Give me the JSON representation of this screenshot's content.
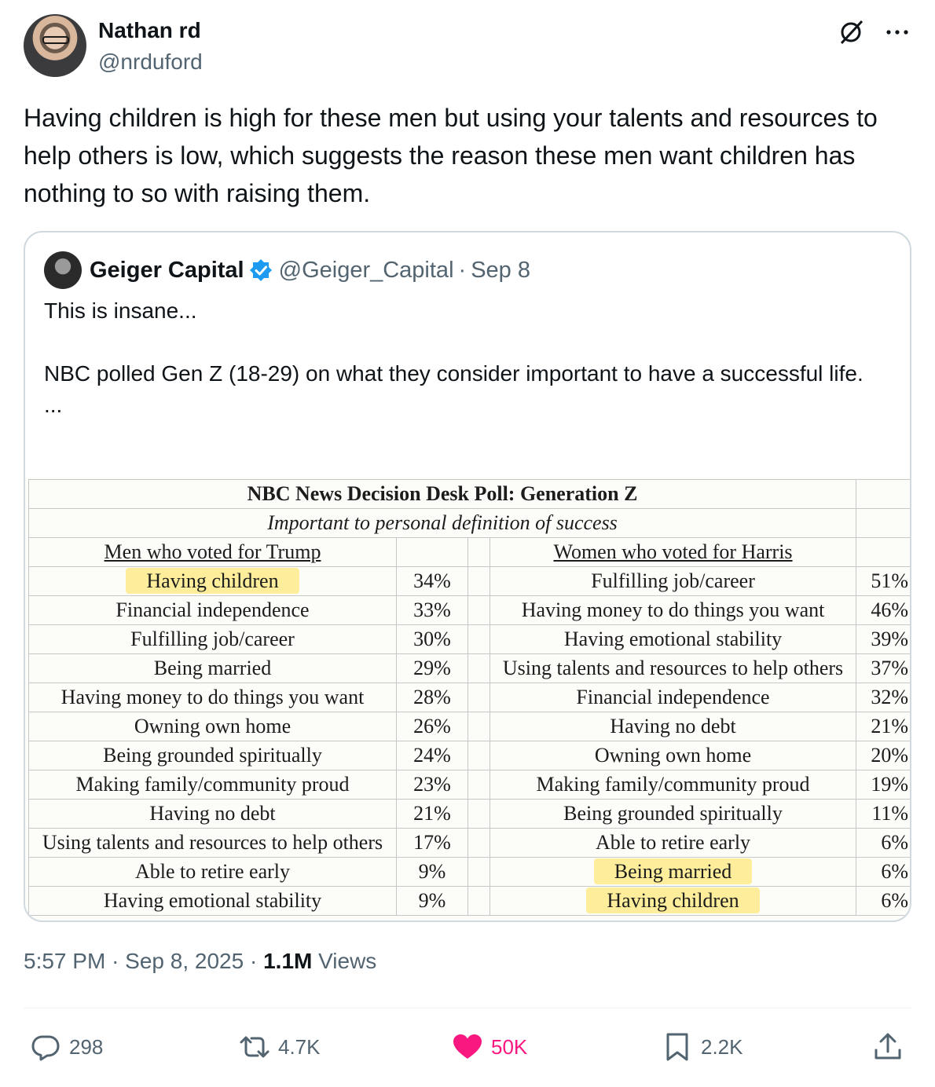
{
  "author": {
    "display_name": "Nathan rd",
    "handle": "@nrduford"
  },
  "tweet_text": "Having children is high for these men but using your talents and resources to help others is low, which suggests the reason these men want children has nothing to so with raising them.",
  "quote": {
    "display_name": "Geiger Capital",
    "handle": "@Geiger_Capital",
    "separator": "·",
    "date": "Sep 8",
    "text": "This is insane...\n\nNBC polled Gen Z (18-29) on what they consider important to have a successful life.\n..."
  },
  "poll": {
    "title": "NBC News Decision Desk Poll: Generation Z",
    "subtitle": "Important to personal definition of success",
    "left_header": "Men who voted for Trump",
    "right_header": "Women who voted for Harris",
    "rows": [
      {
        "left": "Having children",
        "left_pct": "34%",
        "right": "Fulfilling job/career",
        "right_pct": "51%"
      },
      {
        "left": "Financial independence",
        "left_pct": "33%",
        "right": "Having money to do things you want",
        "right_pct": "46%"
      },
      {
        "left": "Fulfilling job/career",
        "left_pct": "30%",
        "right": "Having emotional stability",
        "right_pct": "39%"
      },
      {
        "left": "Being married",
        "left_pct": "29%",
        "right": "Using talents and resources to help others",
        "right_pct": "37%"
      },
      {
        "left": "Having money to do things you want",
        "left_pct": "28%",
        "right": "Financial independence",
        "right_pct": "32%"
      },
      {
        "left": "Owning own home",
        "left_pct": "26%",
        "right": "Having no debt",
        "right_pct": "21%"
      },
      {
        "left": "Being grounded spiritually",
        "left_pct": "24%",
        "right": "Owning own home",
        "right_pct": "20%"
      },
      {
        "left": "Making family/community proud",
        "left_pct": "23%",
        "right": "Making family/community proud",
        "right_pct": "19%"
      },
      {
        "left": "Having no debt",
        "left_pct": "21%",
        "right": "Being grounded spiritually",
        "right_pct": "11%"
      },
      {
        "left": "Using talents and resources to help others",
        "left_pct": "17%",
        "right": "Able to retire early",
        "right_pct": "6%"
      },
      {
        "left": "Able to retire early",
        "left_pct": "9%",
        "right": "Being married",
        "right_pct": "6%"
      },
      {
        "left": "Having emotional stability",
        "left_pct": "9%",
        "right": "Having children",
        "right_pct": "6%"
      }
    ],
    "highlight_color": "#ffe250"
  },
  "meta": {
    "time": "5:57 PM",
    "sep": "·",
    "date": "Sep 8, 2025",
    "views_count": "1.1M",
    "views_label": "Views"
  },
  "actions": {
    "replies": "298",
    "reposts": "4.7K",
    "likes": "50K",
    "bookmarks": "2.2K"
  },
  "colors": {
    "like": "#f91880",
    "verified": "#1d9bf0",
    "muted": "#536471"
  },
  "icons": [
    "grok-icon",
    "more-icon",
    "verified-badge-icon",
    "reply-icon",
    "repost-icon",
    "heart-icon",
    "bookmark-icon",
    "share-icon"
  ]
}
